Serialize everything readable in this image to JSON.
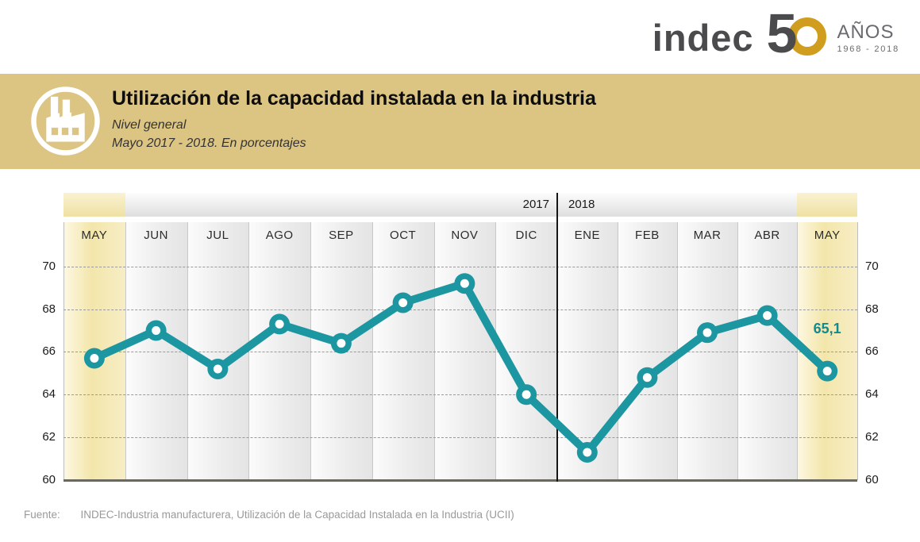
{
  "logo": {
    "brand": "indec",
    "anniversary_number": "5",
    "anniversary_label": "AÑOS",
    "anniversary_years": "1968 - 2018"
  },
  "header": {
    "title": "Utilización de la capacidad instalada en la industria",
    "subtitle1": "Nivel general",
    "subtitle2": "Mayo 2017 - 2018. En porcentajes"
  },
  "footer": {
    "label": "Fuente:",
    "text": "INDEC-Industria manufacturera, Utilización de la Capacidad Instalada en la Industria (UCII)"
  },
  "colors": {
    "line_teal": "#1c96a0",
    "value_label_teal": "#0f8c90",
    "header_band_tan": "#dcc483",
    "logo_gold": "#d09d1f",
    "highlight_yellow": "#f3e6ab",
    "axis_gray": "#6a695f"
  },
  "chart_data": {
    "type": "line",
    "categories": [
      "MAY",
      "JUN",
      "JUL",
      "AGO",
      "SEP",
      "OCT",
      "NOV",
      "DIC",
      "ENE",
      "FEB",
      "MAR",
      "ABR",
      "MAY"
    ],
    "year_groups": [
      {
        "label": "2017",
        "months": 8
      },
      {
        "label": "2018",
        "months": 5
      }
    ],
    "values": [
      65.7,
      67.0,
      65.2,
      67.3,
      66.4,
      68.3,
      69.2,
      64.0,
      61.3,
      64.8,
      66.9,
      67.7,
      65.1
    ],
    "last_value_label": "65,1",
    "highlighted_columns": [
      0,
      12
    ],
    "yticks": [
      60,
      62,
      64,
      66,
      68,
      70
    ],
    "ylim": [
      60,
      70.7
    ],
    "grid": "horizontal-dashed",
    "legend": "none",
    "title": "Utilización de la capacidad instalada en la industria - Nivel general",
    "xlabel": "",
    "ylabel": "En porcentajes"
  }
}
